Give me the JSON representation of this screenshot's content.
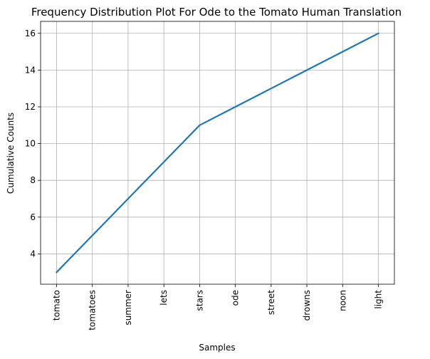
{
  "chart_data": {
    "type": "line",
    "title": "Frequency Distribution Plot For Ode to the Tomato Human Translation",
    "xlabel": "Samples",
    "ylabel": "Cumulative Counts",
    "categories": [
      "tomato",
      "tomatoes",
      "summer",
      "lets",
      "stars",
      "ode",
      "street",
      "drowns",
      "noon",
      "light"
    ],
    "series": [
      {
        "values": [
          3,
          5,
          7,
          9,
          11,
          12,
          13,
          14,
          15,
          16
        ]
      }
    ],
    "ylim": [
      2.35,
      16.65
    ],
    "yticks": [
      4,
      6,
      8,
      10,
      12,
      14,
      16
    ],
    "grid": true,
    "colors": {
      "line": "#1f77b4",
      "grid": "#b0b0b0"
    }
  }
}
